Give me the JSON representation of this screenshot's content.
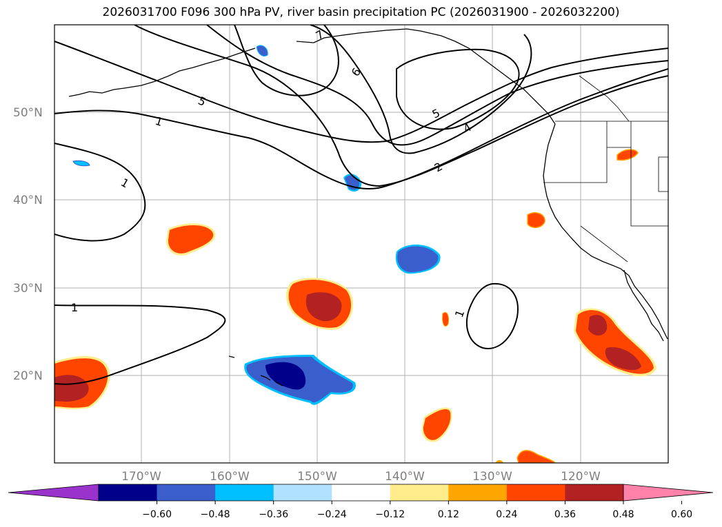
{
  "title": "2026031700 F096 300 hPa PV, river basin precipitation PC (2026031900 - 2026032200)",
  "lat_labels": [
    "50°N",
    "40°N",
    "30°N",
    "20°N"
  ],
  "lon_labels": [
    "170°W",
    "160°W",
    "150°W",
    "140°W",
    "130°W",
    "120°W"
  ],
  "pv_contour_labels": [
    "7",
    "6",
    "5",
    "5",
    "4",
    "2",
    "1",
    "1",
    "1",
    "1"
  ],
  "colorbar": {
    "ticks": [
      "−0.60",
      "−0.48",
      "−0.36",
      "−0.24",
      "−0.12",
      "0.12",
      "0.24",
      "0.36",
      "0.48",
      "0.60"
    ],
    "colors": [
      "#9933cc",
      "#00008b",
      "#3a5fcd",
      "#00bfff",
      "#b0e2ff",
      "#ffffff",
      "#ffec8b",
      "#ffa500",
      "#ff4500",
      "#b22222",
      "#ff82ab"
    ]
  }
}
